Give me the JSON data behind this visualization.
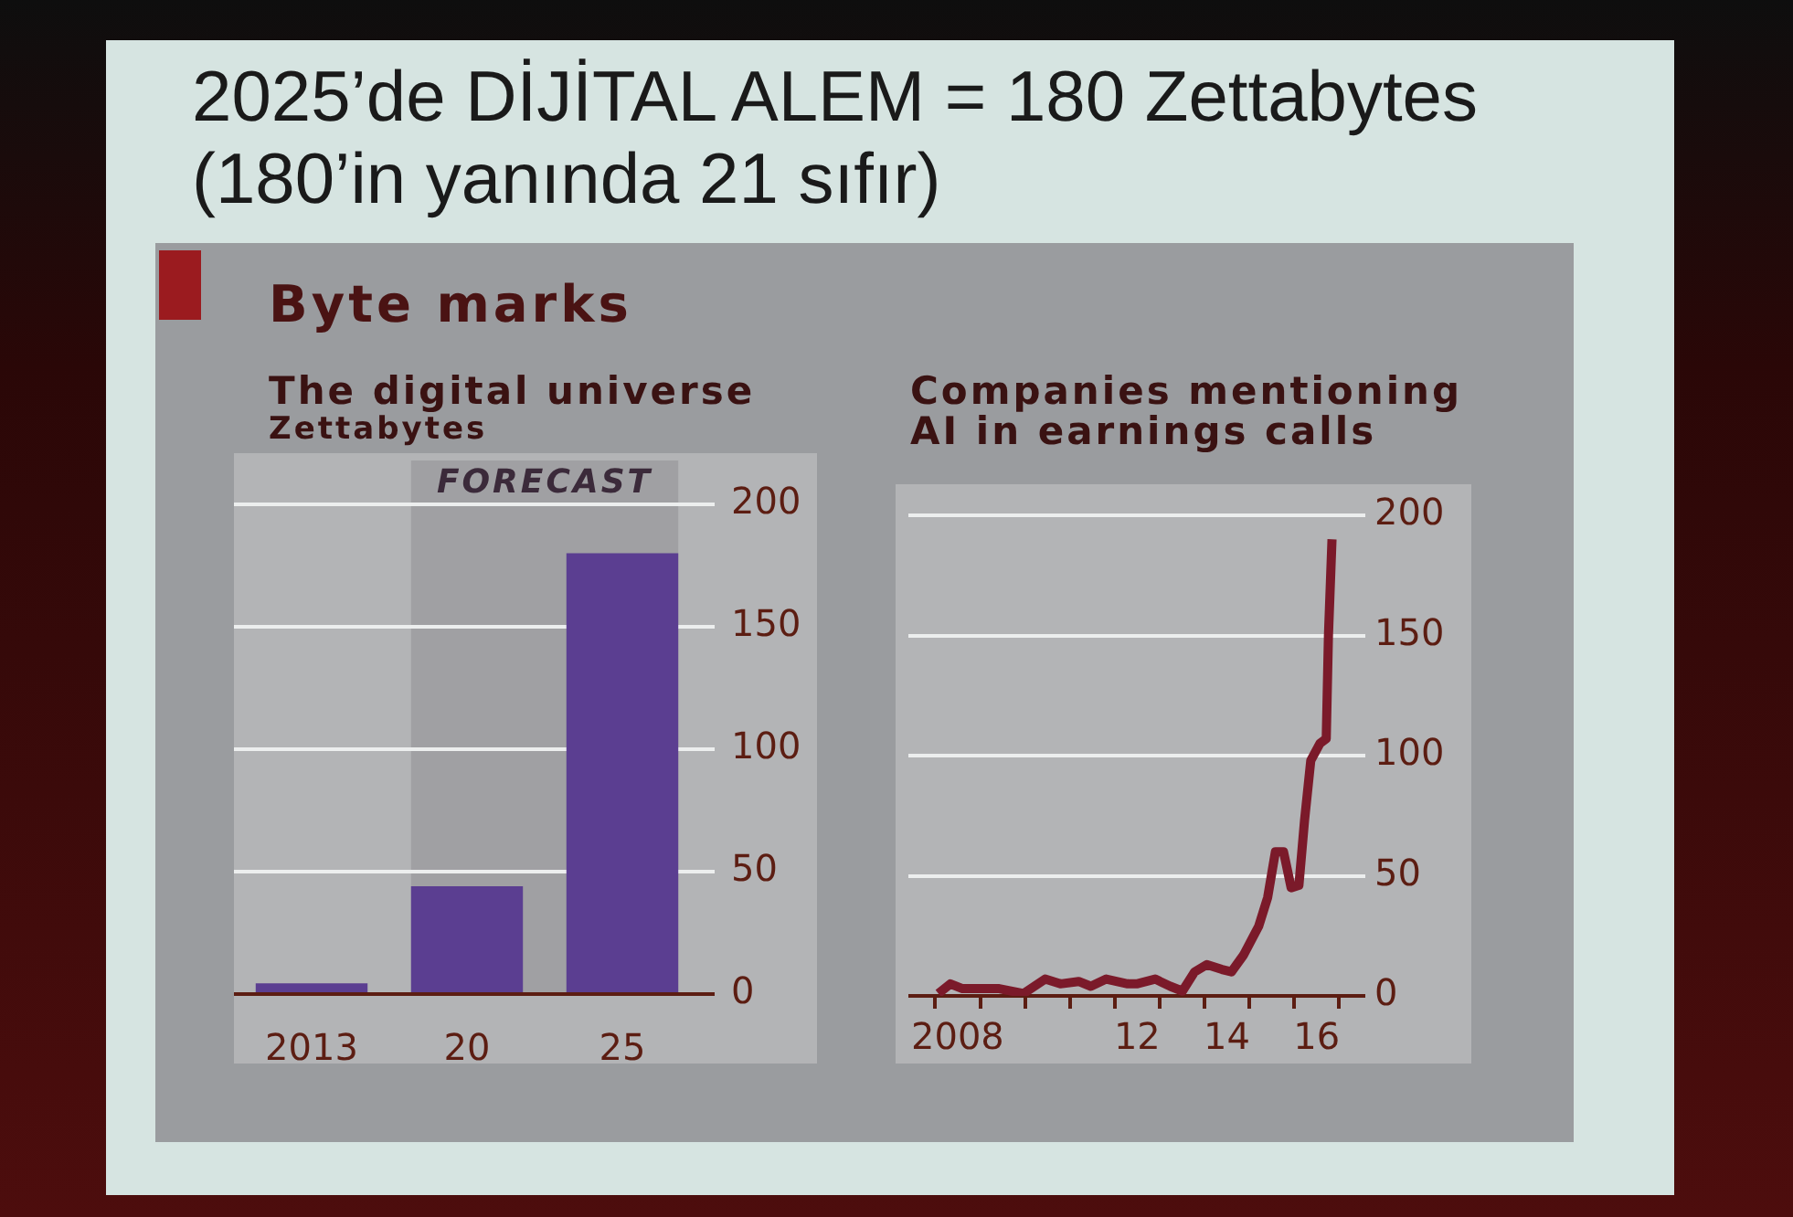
{
  "chart_data": [
    {
      "type": "bar",
      "title": "The digital universe",
      "ylabel": "Zettabytes",
      "annotations": [
        "2025’de DİJİTAL ALEM = 180 Zettabytes",
        "(180’in yanında 21 sıfır)",
        "Byte marks"
      ],
      "categories": [
        "2013",
        "20",
        "25"
      ],
      "values": [
        4.4,
        44,
        180
      ],
      "color": "#5b3e91",
      "ylim": [
        0,
        200
      ],
      "yticks": [
        0,
        50,
        100,
        150,
        200
      ],
      "grid": "y",
      "bands": [
        {
          "axis": "x",
          "from": "20",
          "to": "25",
          "label": "FORECAST",
          "color": "#a0a0a3"
        }
      ]
    },
    {
      "type": "line",
      "title": "Companies mentioning AI in earnings calls",
      "x": [
        "2008-01-26",
        "2008-05-03",
        "2008-08-10",
        "2009-06-05",
        "2009-12-20",
        "2010-06-13",
        "2010-10-15",
        "2011-03-13",
        "2011-06-20",
        "2011-10-23",
        "2012-04-15",
        "2012-06-27",
        "2012-11-25",
        "2013-03-28",
        "2013-07-05",
        "2013-10-12",
        "2014-01-19",
        "2014-05-22",
        "2014-08-07",
        "2014-11-14",
        "2015-03-17",
        "2015-05-29",
        "2015-07-31",
        "2015-10-05",
        "2015-12-06",
        "2016-02-07",
        "2016-03-24",
        "2016-05-14",
        "2016-07-27",
        "2016-09-17",
        "2016-10-05",
        "2016-11-03"
      ],
      "values": [
        1,
        5,
        3,
        3,
        1,
        7,
        5,
        6,
        4,
        7,
        5,
        5,
        7,
        4,
        2,
        10,
        13,
        11,
        10,
        17,
        29,
        41,
        60,
        60,
        45,
        46,
        73,
        98,
        105,
        107,
        150,
        190
      ],
      "color": "#7b1a2a",
      "marker": "none",
      "xlim": [
        "2007-05-27",
        "2017-04-19"
      ],
      "xticks": [
        {
          "value": "2008-01-01",
          "label": null
        },
        {
          "value": "2008-07-01",
          "label": "2008"
        },
        {
          "value": "2009-01-01",
          "label": null
        },
        {
          "value": "2010-01-01",
          "label": null
        },
        {
          "value": "2011-01-01",
          "label": null
        },
        {
          "value": "2012-01-01",
          "label": null
        },
        {
          "value": "2012-07-01",
          "label": "12"
        },
        {
          "value": "2013-01-01",
          "label": null
        },
        {
          "value": "2014-01-01",
          "label": null
        },
        {
          "value": "2014-07-01",
          "label": "14"
        },
        {
          "value": "2015-01-01",
          "label": null
        },
        {
          "value": "2016-01-01",
          "label": null
        },
        {
          "value": "2016-07-01",
          "label": "16"
        },
        {
          "value": "2017-01-01",
          "label": null
        }
      ],
      "ylim": [
        0,
        200
      ],
      "yticks": [
        0,
        50,
        100,
        150,
        200
      ],
      "grid": "y"
    }
  ]
}
